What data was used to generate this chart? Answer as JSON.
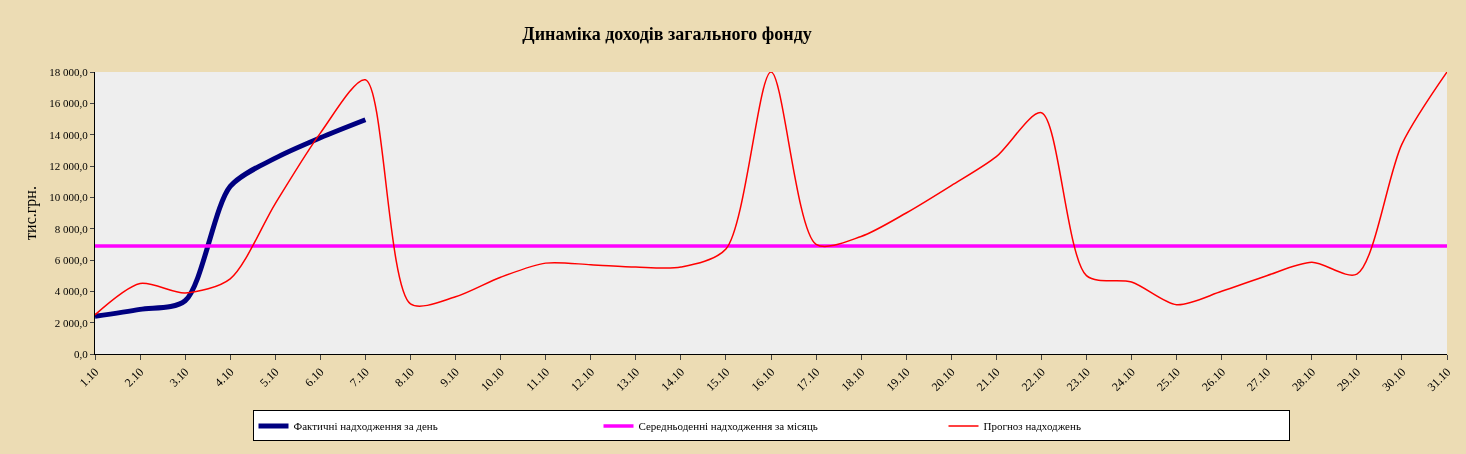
{
  "chart_data": {
    "type": "line",
    "title": "Динаміка доходів загального фонду",
    "ylabel": "тис.грн.",
    "categories": [
      "1.10",
      "2.10",
      "3.10",
      "4.10",
      "5.10",
      "6.10",
      "7.10",
      "8.10",
      "9.10",
      "10.10",
      "11.10",
      "12.10",
      "13.10",
      "14.10",
      "15.10",
      "16.10",
      "17.10",
      "18.10",
      "19.10",
      "20.10",
      "21.10",
      "22.10",
      "23.10",
      "24.10",
      "25.10",
      "26.10",
      "27.10",
      "28.10",
      "29.10",
      "30.10",
      "31.10"
    ],
    "series": [
      {
        "name": "Фактичні надходження за день",
        "color": "#000080",
        "values": [
          2400,
          2850,
          3400,
          10700,
          12500,
          13800,
          14950,
          null,
          null,
          null,
          null,
          null,
          null,
          null,
          null,
          null,
          null,
          null,
          null,
          null,
          null,
          null,
          null,
          null,
          null,
          null,
          null,
          null,
          null,
          null,
          null
        ]
      },
      {
        "name": "Середньоденні надходження за місяць",
        "color": "#ff00ff",
        "values": [
          6900,
          6900,
          6900,
          6900,
          6900,
          6900,
          6900,
          6900,
          6900,
          6900,
          6900,
          6900,
          6900,
          6900,
          6900,
          6900,
          6900,
          6900,
          6900,
          6900,
          6900,
          6900,
          6900,
          6900,
          6900,
          6900,
          6900,
          6900,
          6900,
          6900,
          6900
        ]
      },
      {
        "name": "Прогноз надходжень",
        "color": "#ff0000",
        "values": [
          2500,
          4500,
          3900,
          4800,
          9600,
          14100,
          17500,
          3200,
          3650,
          4900,
          5800,
          5700,
          5550,
          5550,
          6700,
          18000,
          7000,
          7500,
          9000,
          10750,
          12600,
          15400,
          5000,
          4600,
          3150,
          4000,
          5000,
          5850,
          5100,
          13400,
          18000
        ]
      }
    ],
    "ylim": [
      0,
      18000
    ],
    "yticks": [
      {
        "value": 0,
        "label": "0,0"
      },
      {
        "value": 2000,
        "label": "2 000,0"
      },
      {
        "value": 4000,
        "label": "4 000,0"
      },
      {
        "value": 6000,
        "label": "6 000,0"
      },
      {
        "value": 8000,
        "label": "8 000,0"
      },
      {
        "value": 10000,
        "label": "10 000,0"
      },
      {
        "value": 12000,
        "label": "12 000,0"
      },
      {
        "value": 14000,
        "label": "14 000,0"
      },
      {
        "value": 16000,
        "label": "16 000,0"
      },
      {
        "value": 18000,
        "label": "18 000,0"
      }
    ],
    "grid": false,
    "legend": "bottom",
    "marker": "none",
    "line_style": "solid"
  }
}
